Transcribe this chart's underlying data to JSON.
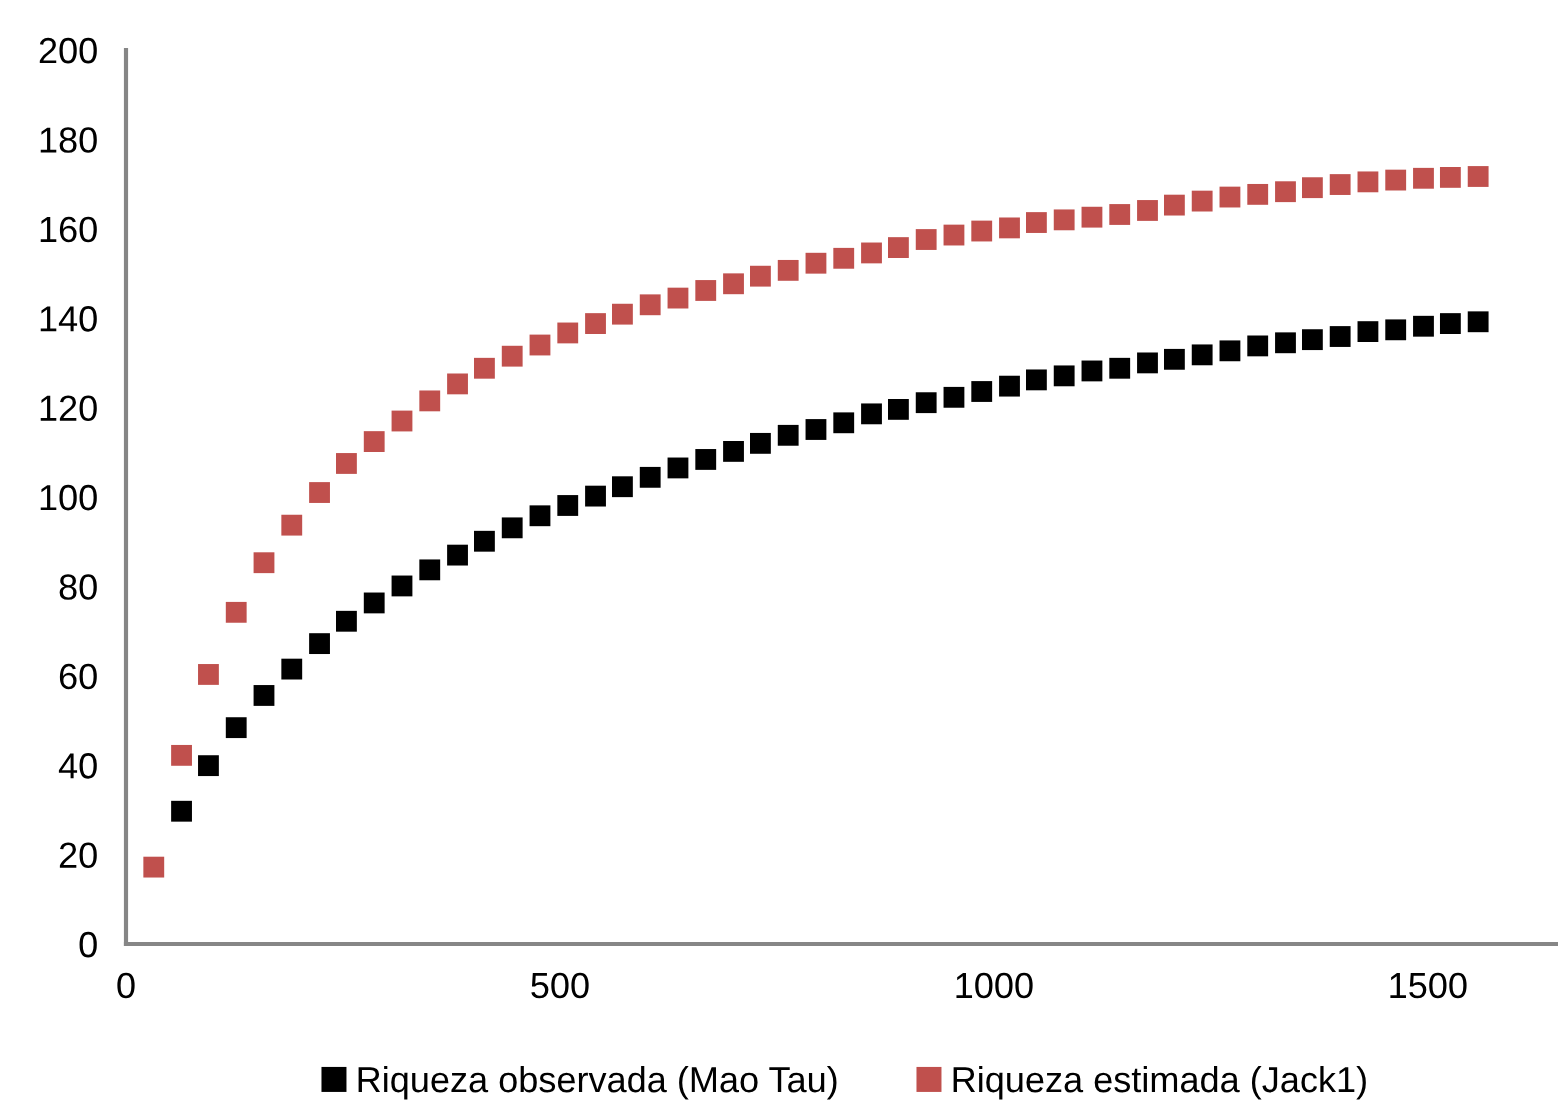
{
  "chart_data": {
    "type": "scatter",
    "marker": "square",
    "grid": false,
    "legend": "bottom",
    "xlim": [
      0,
      1650
    ],
    "xticks": [
      0,
      500,
      1000,
      1500
    ],
    "ylim": [
      0,
      200
    ],
    "yticks": [
      0,
      20,
      40,
      60,
      80,
      100,
      120,
      140,
      160,
      180,
      200
    ],
    "series": [
      {
        "name": "Riqueza observada (Mao Tau)",
        "color": "#000000",
        "x": [
          64,
          95,
          127,
          159,
          191,
          223,
          254,
          286,
          318,
          350,
          382,
          413,
          445,
          477,
          509,
          541,
          572,
          604,
          636,
          668,
          700,
          731,
          763,
          795,
          827,
          859,
          890,
          922,
          954,
          986,
          1018,
          1049,
          1081,
          1113,
          1145,
          1177,
          1208,
          1240,
          1272,
          1304,
          1336,
          1367,
          1399,
          1431,
          1463,
          1495,
          1526,
          1558
        ],
        "values": [
          29.7,
          39.9,
          48.4,
          55.6,
          61.5,
          67.2,
          72.2,
          76.3,
          80.1,
          83.7,
          87,
          90.1,
          93.1,
          95.8,
          98.1,
          100.2,
          102.3,
          104.4,
          106.5,
          108.4,
          110.2,
          112,
          113.8,
          115.1,
          116.6,
          118.6,
          119.6,
          121.1,
          122.3,
          123.6,
          124.8,
          126.2,
          127.1,
          128.2,
          128.8,
          130,
          130.8,
          131.8,
          132.7,
          133.8,
          134.5,
          135.2,
          135.9,
          137,
          137.4,
          138.2,
          138.8,
          139.2
        ]
      },
      {
        "name": "Riqueza estimada (Jack1)",
        "color": "#c0504d",
        "x": [
          32,
          64,
          95,
          127,
          159,
          191,
          223,
          254,
          286,
          318,
          350,
          382,
          413,
          445,
          477,
          509,
          541,
          572,
          604,
          636,
          668,
          700,
          731,
          763,
          795,
          827,
          859,
          890,
          922,
          954,
          986,
          1018,
          1049,
          1081,
          1113,
          1145,
          1177,
          1208,
          1240,
          1272,
          1304,
          1336,
          1367,
          1399,
          1431,
          1463,
          1495,
          1526,
          1558
        ],
        "values": [
          17.2,
          42.2,
          60.3,
          74.2,
          85.3,
          93.7,
          101,
          107.5,
          112.4,
          117,
          121.5,
          125.3,
          128.8,
          131.5,
          134,
          136.7,
          138.8,
          140.9,
          143,
          144.5,
          146.2,
          147.7,
          149.4,
          150.7,
          152.3,
          153.4,
          154.6,
          155.8,
          157.6,
          158.6,
          159.5,
          160.2,
          161.4,
          162,
          162.6,
          163.2,
          164.1,
          165.3,
          166.2,
          167.1,
          167.7,
          168.3,
          169.2,
          169.9,
          170.5,
          170.9,
          171.3,
          171.5,
          171.7
        ]
      }
    ]
  }
}
